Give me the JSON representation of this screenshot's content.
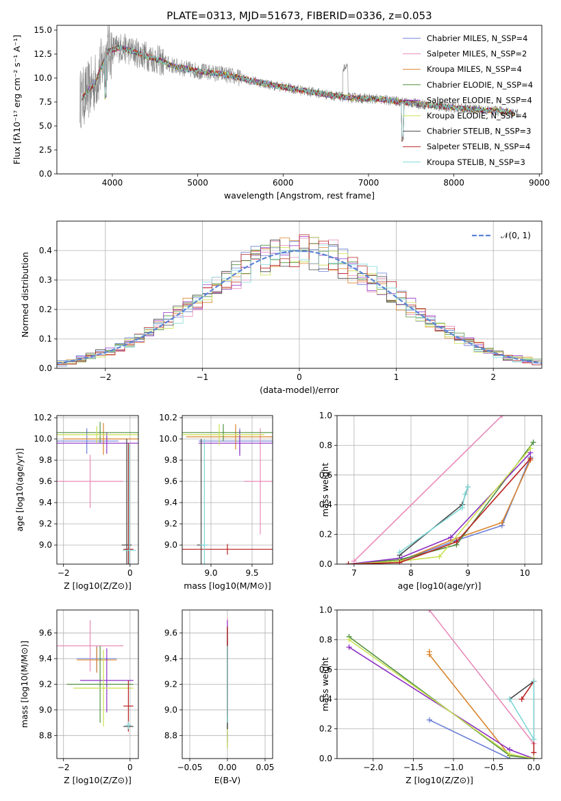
{
  "figure": {
    "title": "PLATE=0313, MJD=51673, FIBERID=0336, z=0.053"
  },
  "colors": {
    "spectrum": "#7f7f7f",
    "normal": "#5b84d6",
    "series": [
      "#6a7fd4",
      "#e889b8",
      "#d9842b",
      "#4f8f3f",
      "#8b2fc4",
      "#c8df4e",
      "#444444",
      "#b71f1f",
      "#7fd7d7"
    ]
  },
  "chart_data": [
    {
      "type": "line",
      "id": "spectrum",
      "ylabel": "Flux [fλ10⁻¹⁷ erg cm⁻² s⁻¹ A⁻¹]",
      "xlabel": "wavelength [Angstrom, rest frame]",
      "xlim": [
        3350,
        9030
      ],
      "ylim": [
        0,
        15.5
      ],
      "xticks": [
        "4000",
        "5000",
        "6000",
        "7000",
        "8000",
        "9000"
      ],
      "yticks": [
        "0.0",
        "2.5",
        "5.0",
        "7.5",
        "10.0",
        "12.5",
        "15.0"
      ],
      "legend_position": "upper-right",
      "legend": [
        "Chabrier MILES, N_SSP=4",
        "Salpeter MILES, N_SSP=2",
        "Kroupa MILES, N_SSP=4",
        "Chabrier ELODIE, N_SSP=4",
        "Salpeter ELODIE, N_SSP=4",
        "Kroupa ELODIE, N_SSP=4",
        "Chabrier STELIB, N_SSP=3",
        "Salpeter STELIB, N_SSP=4",
        "Kroupa STELIB, N_SSP=3"
      ],
      "model_x": [
        3650,
        3800,
        3950,
        4100,
        4300,
        4500,
        4700,
        4900,
        5100,
        5300,
        5500,
        5700,
        5900,
        6100,
        6300,
        6500,
        6700,
        6900,
        7100,
        7300,
        7500,
        7700,
        7900,
        8100,
        8300,
        8500,
        8700
      ],
      "model_y": [
        7.9,
        9.6,
        12.8,
        13.2,
        12.6,
        12.0,
        11.3,
        10.9,
        10.6,
        10.4,
        10.0,
        9.6,
        9.2,
        8.9,
        8.6,
        8.3,
        8.0,
        7.9,
        7.8,
        7.6,
        7.4,
        7.2,
        7.0,
        6.8,
        6.7,
        6.6,
        6.4
      ]
    },
    {
      "type": "line",
      "id": "residuals",
      "ylabel": "Normed distribution",
      "xlabel": "(data-model)/error",
      "xlim": [
        -2.5,
        2.5
      ],
      "ylim": [
        0,
        0.5
      ],
      "xticks": [
        "−2",
        "−1",
        "0",
        "1",
        "2"
      ],
      "yticks": [
        "0.0",
        "0.1",
        "0.2",
        "0.3",
        "0.4"
      ],
      "legend_position": "upper-right",
      "legend": [
        "𝒩(0, 1)"
      ]
    },
    {
      "type": "scatter",
      "id": "age-vs-Z",
      "ylabel": "age  [log10(age/yr)]",
      "xlabel": "Z [log10(Z/Z⊙)]",
      "xlim": [
        -2.2,
        0.25
      ],
      "ylim": [
        8.82,
        10.22
      ],
      "xticks": [
        "−2",
        "0"
      ],
      "yticks": [
        "9.0",
        "9.2",
        "9.4",
        "9.6",
        "9.8",
        "10.0",
        "10.2"
      ],
      "series": [
        {
          "x": -1.3,
          "y": 9.98,
          "xerr": 0.95,
          "yerr": 0.12
        },
        {
          "x": -1.2,
          "y": 9.6,
          "xerr": 1.0,
          "yerr": 0.25
        },
        {
          "x": -0.8,
          "y": 10.0,
          "xerr": 1.2,
          "yerr": 0.15
        },
        {
          "x": -0.9,
          "y": 10.06,
          "xerr": 1.85,
          "yerr": 0.1
        },
        {
          "x": -0.7,
          "y": 9.96,
          "xerr": 1.6,
          "yerr": 0.1
        },
        {
          "x": -1.0,
          "y": 10.04,
          "xerr": 1.4,
          "yerr": 0.08
        },
        {
          "x": -0.1,
          "y": 9.0,
          "xerr": 0.15,
          "yerr": 1.0
        },
        {
          "x": -0.05,
          "y": 8.96,
          "xerr": 0.15,
          "yerr": 1.0
        },
        {
          "x": -0.02,
          "y": 8.95,
          "xerr": 0.2,
          "yerr": 1.0
        }
      ]
    },
    {
      "type": "scatter",
      "id": "age-vs-mass",
      "xlabel": "mass [log10(M/M⊙)]",
      "xlim": [
        8.65,
        9.75
      ],
      "ylim": [
        8.82,
        10.22
      ],
      "xticks": [
        "9.0",
        "9.5"
      ],
      "yticks": [
        "9.0",
        "9.2",
        "9.4",
        "9.6",
        "9.8",
        "10.0",
        "10.2"
      ],
      "series": [
        {
          "x": 9.35,
          "y": 9.98,
          "xerr": 0.5,
          "yerr": 0.12
        },
        {
          "x": 9.6,
          "y": 9.6,
          "xerr": 0.2,
          "yerr": 0.5
        },
        {
          "x": 9.3,
          "y": 10.02,
          "xerr": 0.6,
          "yerr": 0.12
        },
        {
          "x": 9.15,
          "y": 10.06,
          "xerr": 0.65,
          "yerr": 0.08
        },
        {
          "x": 9.35,
          "y": 9.96,
          "xerr": 0.5,
          "yerr": 0.12
        },
        {
          "x": 9.1,
          "y": 10.04,
          "xerr": 0.55,
          "yerr": 0.1
        },
        {
          "x": 8.88,
          "y": 9.0,
          "xerr": 0.05,
          "yerr": 1.0
        },
        {
          "x": 9.2,
          "y": 8.96,
          "xerr": 0.6,
          "yerr": 0.05
        },
        {
          "x": 8.92,
          "y": 9.0,
          "xerr": 0.05,
          "yerr": 1.0
        }
      ]
    },
    {
      "type": "line",
      "id": "mass-weight-vs-age",
      "ylabel": "mass weight",
      "xlabel": "age  [log10(age/yr)]",
      "xlim": [
        6.7,
        10.3
      ],
      "ylim": [
        0,
        1.0
      ],
      "xticks": [
        "7",
        "8",
        "9",
        "10"
      ],
      "yticks": [
        "0.0",
        "0.2",
        "0.4",
        "0.6",
        "0.8",
        "1.0"
      ],
      "series": [
        {
          "x": [
            6.9,
            7.8,
            8.8,
            9.6,
            10.1
          ],
          "y": [
            0.0,
            0.02,
            0.16,
            0.26,
            0.72
          ]
        },
        {
          "x": [
            7.0,
            9.6
          ],
          "y": [
            0.02,
            1.0
          ]
        },
        {
          "x": [
            6.9,
            7.8,
            8.7,
            9.6,
            10.1
          ],
          "y": [
            0.0,
            0.02,
            0.16,
            0.28,
            0.7
          ]
        },
        {
          "x": [
            6.9,
            7.8,
            8.8,
            10.15
          ],
          "y": [
            0.0,
            0.03,
            0.13,
            0.82
          ]
        },
        {
          "x": [
            6.9,
            7.8,
            8.7,
            10.1
          ],
          "y": [
            0.0,
            0.04,
            0.18,
            0.75
          ]
        },
        {
          "x": [
            6.9,
            7.8,
            8.5,
            10.1
          ],
          "y": [
            0.0,
            0.02,
            0.05,
            0.78
          ]
        },
        {
          "x": [
            7.8,
            8.9,
            9.0
          ],
          "y": [
            0.06,
            0.4,
            0.52
          ]
        },
        {
          "x": [
            6.9,
            7.8,
            8.8,
            10.1
          ],
          "y": [
            0.0,
            0.01,
            0.15,
            0.71
          ]
        },
        {
          "x": [
            7.8,
            8.9,
            8.95,
            9.0
          ],
          "y": [
            0.08,
            0.38,
            0.47,
            0.52
          ]
        }
      ]
    },
    {
      "type": "scatter",
      "id": "mass-vs-Z",
      "ylabel": "mass [log10(M/M⊙)]",
      "xlabel": "Z [log10(Z/Z⊙)]",
      "xlim": [
        -2.2,
        0.25
      ],
      "ylim": [
        8.62,
        9.78
      ],
      "xticks": [
        "−2",
        "0"
      ],
      "yticks": [
        "8.8",
        "9.0",
        "9.2",
        "9.4",
        "9.6"
      ],
      "series": [
        {
          "x": -1.0,
          "y": 9.4,
          "xerr": 0.6,
          "yerr": 0.1
        },
        {
          "x": -1.2,
          "y": 9.5,
          "xerr": 1.0,
          "yerr": 0.2
        },
        {
          "x": -1.0,
          "y": 9.39,
          "xerr": 0.6,
          "yerr": 0.1
        },
        {
          "x": -0.9,
          "y": 9.2,
          "xerr": 1.0,
          "yerr": 0.3
        },
        {
          "x": -0.7,
          "y": 9.23,
          "xerr": 0.8,
          "yerr": 0.25
        },
        {
          "x": -0.8,
          "y": 9.17,
          "xerr": 0.9,
          "yerr": 0.3
        },
        {
          "x": -0.05,
          "y": 8.87,
          "xerr": 0.15,
          "yerr": 0.03
        },
        {
          "x": -0.05,
          "y": 9.03,
          "xerr": 0.15,
          "yerr": 0.2
        },
        {
          "x": -0.05,
          "y": 8.88,
          "xerr": 0.1,
          "yerr": 0.03
        }
      ]
    },
    {
      "type": "scatter",
      "id": "mass-vs-EBV",
      "xlabel": "E(B-V)",
      "xlim": [
        -0.06,
        0.06
      ],
      "ylim": [
        8.62,
        9.78
      ],
      "xticks": [
        "−0.05",
        "0.00",
        "0.05"
      ],
      "yticks": [
        "8.8",
        "9.0",
        "9.2",
        "9.4",
        "9.6"
      ],
      "series": [
        {
          "x": 0,
          "y": 9.2,
          "yerr": 0.45
        },
        {
          "x": 0,
          "y": 9.4,
          "yerr": 0.32
        },
        {
          "x": 0,
          "y": 9.3,
          "yerr": 0.35
        },
        {
          "x": 0,
          "y": 9.25,
          "yerr": 0.4
        },
        {
          "x": 0,
          "y": 9.2,
          "yerr": 0.5
        },
        {
          "x": 0,
          "y": 9.1,
          "yerr": 0.4
        },
        {
          "x": 0,
          "y": 9.2,
          "yerr": 0.35
        },
        {
          "x": 0,
          "y": 9.3,
          "yerr": 0.35
        },
        {
          "x": 0,
          "y": 9.2,
          "yerr": 0.3
        }
      ]
    },
    {
      "type": "line",
      "id": "mass-weight-vs-Z",
      "ylabel": "mass weight",
      "xlabel": "Z [log10(Z/Z⊙)]",
      "xlim": [
        -2.45,
        0.1
      ],
      "ylim": [
        0,
        1.0
      ],
      "xticks": [
        "−2.0",
        "−1.5",
        "−1.0",
        "−0.5",
        "0.0"
      ],
      "yticks": [
        "0.0",
        "0.2",
        "0.4",
        "0.6",
        "0.8",
        "1.0"
      ],
      "series": [
        {
          "x": [
            -1.3,
            -0.3,
            0.0
          ],
          "y": [
            0.26,
            0.0,
            0.0
          ]
        },
        {
          "x": [
            -1.3,
            0.0
          ],
          "y": [
            1.0,
            0.1
          ]
        },
        {
          "x": [
            -1.3,
            -1.3,
            -0.3,
            0.0
          ],
          "y": [
            0.72,
            0.7,
            0.02,
            0.0
          ]
        },
        {
          "x": [
            -2.3,
            -0.3,
            0.0
          ],
          "y": [
            0.82,
            0.02,
            0.0
          ]
        },
        {
          "x": [
            -2.3,
            -0.3,
            0.0
          ],
          "y": [
            0.75,
            0.06,
            0.0
          ]
        },
        {
          "x": [
            -2.3,
            -0.3,
            0.0
          ],
          "y": [
            0.8,
            0.03,
            0.0
          ]
        },
        {
          "x": [
            -0.3,
            0.0
          ],
          "y": [
            0.4,
            0.52
          ]
        },
        {
          "x": [
            0.0,
            0.0,
            -0.15
          ],
          "y": [
            0.04,
            0.52,
            0.4
          ]
        },
        {
          "x": [
            -0.3,
            0.0,
            0.0
          ],
          "y": [
            0.4,
            0.13,
            0.52
          ]
        }
      ]
    }
  ]
}
